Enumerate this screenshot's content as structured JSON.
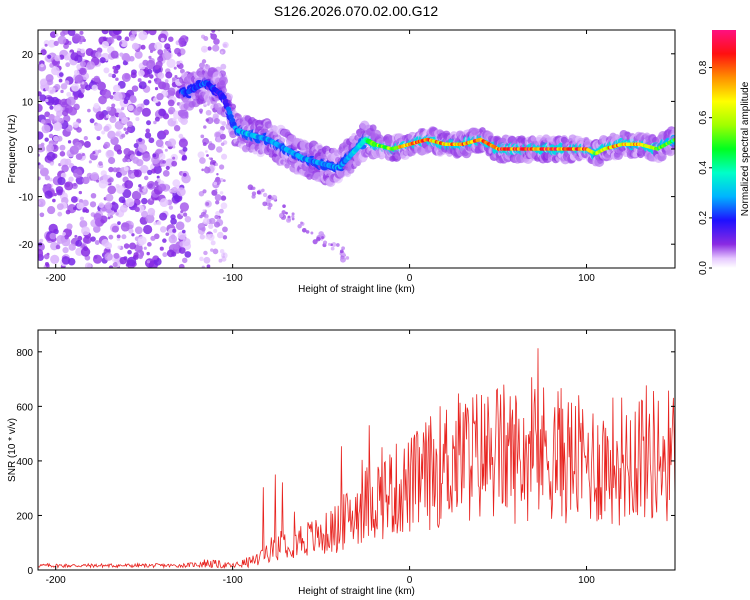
{
  "title": "S126.2026.070.02.00.G12",
  "chart_data": [
    {
      "type": "heatmap",
      "description_of_panel": "spectrogram",
      "xlabel": "Height of straight line (km)",
      "ylabel": "Frequency (Hz)",
      "xlim": [
        -210,
        150
      ],
      "ylim": [
        -25,
        25
      ],
      "xticks": [
        -200,
        -100,
        0,
        100
      ],
      "xtick_labels": [
        "-200",
        "-100",
        "0",
        "100"
      ],
      "yticks": [
        20,
        10,
        0,
        -10,
        -20
      ],
      "ytick_labels": [
        "20",
        "10",
        "0",
        "-10",
        "-20"
      ],
      "colorbar": {
        "label": "Normalized spectral amplitude",
        "range": [
          0,
          0.95
        ],
        "ticks": [
          0,
          0.2,
          0.4,
          0.6,
          0.8
        ],
        "tick_labels": [
          "0.0",
          "0.2",
          "0.4",
          "0.6",
          "0.8"
        ]
      },
      "ridge": {
        "x": [
          -125,
          -115,
          -105,
          -98,
          -90,
          -80,
          -70,
          -60,
          -50,
          -40,
          -35,
          -30,
          -25,
          -20,
          -10,
          0,
          10,
          20,
          30,
          40,
          50,
          60,
          70,
          80,
          90,
          100,
          105,
          110,
          120,
          130,
          140,
          150
        ],
        "y": [
          12,
          14,
          11,
          4,
          3,
          2,
          0,
          -2,
          -3,
          -4,
          -2,
          0,
          2,
          1,
          0,
          1,
          2,
          1,
          1,
          2,
          0,
          0,
          0,
          0,
          0,
          0,
          -1,
          0,
          1,
          1,
          0,
          2
        ],
        "amplitude": [
          0.25,
          0.25,
          0.2,
          0.3,
          0.35,
          0.3,
          0.3,
          0.3,
          0.3,
          0.3,
          0.3,
          0.35,
          0.4,
          0.6,
          0.65,
          0.85,
          0.85,
          0.8,
          0.85,
          0.85,
          0.9,
          0.9,
          0.9,
          0.92,
          0.9,
          0.85,
          0.6,
          0.8,
          0.8,
          0.85,
          0.6,
          0.5
        ]
      }
    },
    {
      "type": "line",
      "xlabel": "Height of straight line (km)",
      "ylabel": "SNR (10 * v/v)",
      "xlim": [
        -210,
        150
      ],
      "ylim": [
        0,
        880
      ],
      "xticks": [
        -200,
        -100,
        0,
        100
      ],
      "xtick_labels": [
        "-200",
        "-100",
        "0",
        "100"
      ],
      "yticks": [
        0,
        200,
        400,
        600,
        800
      ],
      "ytick_labels": [
        "0",
        "200",
        "400",
        "600",
        "800"
      ],
      "color": "#e8231f",
      "envelope": {
        "x": [
          -210,
          -130,
          -115,
          -100,
          -90,
          -80,
          -70,
          -60,
          -50,
          -40,
          -30,
          -20,
          -10,
          0,
          10,
          20,
          30,
          40,
          50,
          60,
          70,
          80,
          90,
          100,
          110,
          120,
          130,
          140,
          150
        ],
        "y": [
          18,
          18,
          25,
          15,
          30,
          80,
          120,
          130,
          140,
          180,
          250,
          300,
          330,
          350,
          400,
          450,
          480,
          480,
          500,
          480,
          490,
          500,
          470,
          450,
          450,
          470,
          500,
          480,
          480
        ]
      }
    }
  ]
}
